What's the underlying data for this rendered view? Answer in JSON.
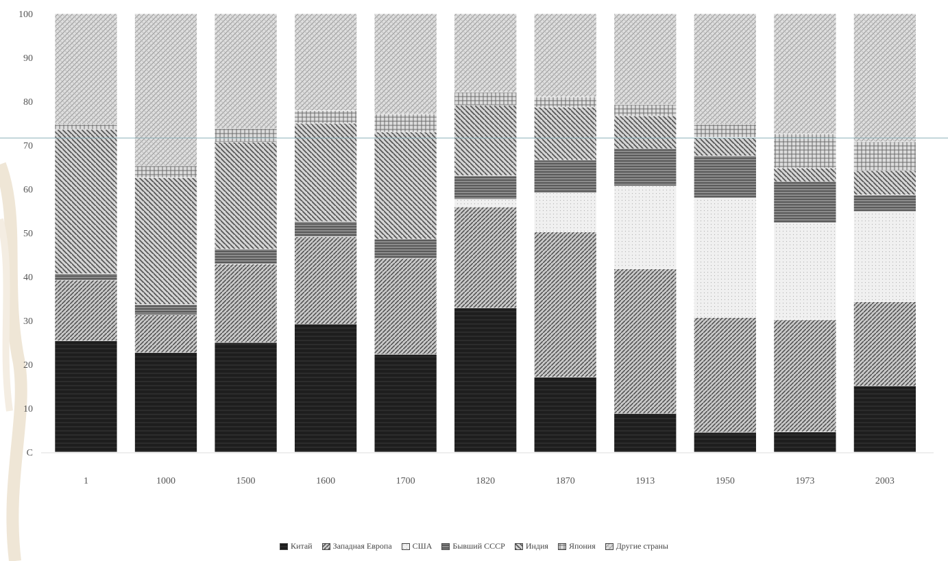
{
  "chart_data": {
    "type": "bar",
    "stacked": true,
    "ylim": [
      0,
      100
    ],
    "yticks": [
      "С",
      "10",
      "20",
      "30",
      "40",
      "50",
      "60",
      "70",
      "80",
      "90",
      "100"
    ],
    "categories": [
      "1",
      "1000",
      "1500",
      "1600",
      "1700",
      "1820",
      "1870",
      "1913",
      "1950",
      "1973",
      "2003"
    ],
    "series": [
      {
        "name": "Китай",
        "pattern": "solid-dark",
        "values": [
          25.4,
          22.7,
          25.0,
          29.2,
          22.3,
          32.9,
          17.1,
          8.8,
          4.5,
          4.6,
          15.1
        ]
      },
      {
        "name": "Западная Европа",
        "pattern": "diag-a",
        "values": [
          13.8,
          8.6,
          17.9,
          19.9,
          21.9,
          23.0,
          33.1,
          33.0,
          26.2,
          25.6,
          19.2
        ]
      },
      {
        "name": "США",
        "pattern": "light-dots",
        "values": [
          0.0,
          0.0,
          0.0,
          0.0,
          0.0,
          1.8,
          8.9,
          18.9,
          27.3,
          22.1,
          20.6
        ]
      },
      {
        "name": "Бывший СССР",
        "pattern": "h-stripes",
        "values": [
          1.5,
          2.4,
          3.4,
          3.5,
          4.4,
          5.4,
          7.5,
          8.5,
          9.6,
          9.4,
          3.8
        ]
      },
      {
        "name": "Индия",
        "pattern": "diag-b",
        "values": [
          32.9,
          28.9,
          24.4,
          22.4,
          24.4,
          16.0,
          12.1,
          7.5,
          4.2,
          3.1,
          5.5
        ]
      },
      {
        "name": "Япония",
        "pattern": "grid",
        "values": [
          1.2,
          2.7,
          3.1,
          2.9,
          4.1,
          3.0,
          2.3,
          2.6,
          3.0,
          7.8,
          6.6
        ]
      },
      {
        "name": "Другие страны",
        "pattern": "light-hatch",
        "values": [
          25.2,
          34.7,
          26.2,
          22.1,
          22.9,
          17.9,
          19.0,
          20.7,
          25.2,
          27.4,
          29.2
        ]
      }
    ],
    "legend_position": "bottom",
    "colors": {
      "grid_bg": "#fbfbfb",
      "axis_text": "#555555",
      "ref_line": "#8fb3bb"
    }
  }
}
